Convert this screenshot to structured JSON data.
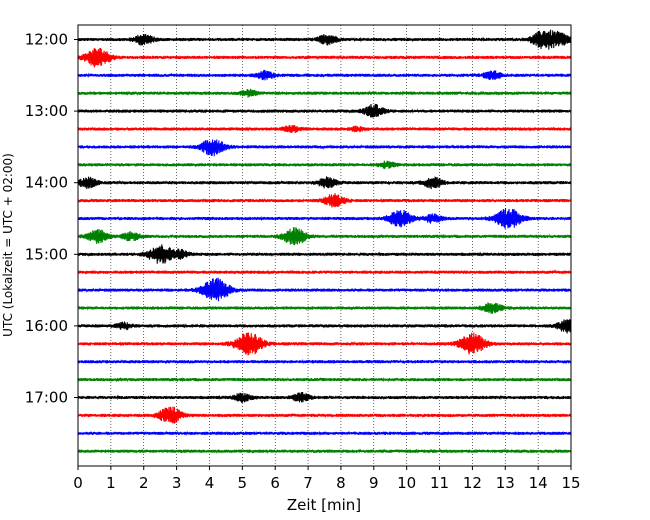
{
  "chart_data": {
    "type": "line",
    "chart_kind": "helicorder (seismogram drum plot)",
    "xlabel": "Zeit  [min]",
    "ylabel": "UTC (Lokalzeit = UTC + 02:00)",
    "xlim": [
      0,
      15
    ],
    "x_ticks": [
      "0",
      "1",
      "2",
      "3",
      "4",
      "5",
      "6",
      "7",
      "8",
      "9",
      "10",
      "11",
      "12",
      "13",
      "14",
      "15"
    ],
    "y_tick_labels": [
      "12:00",
      "13:00",
      "14:00",
      "15:00",
      "16:00",
      "17:00"
    ],
    "grid": "vertical dotted lines at every minute",
    "line_colors": [
      "#000000",
      "#ff0000",
      "#0000ff",
      "#008000"
    ],
    "traces": [
      {
        "start": "12:00",
        "color": "#000000",
        "bursts": [
          [
            2.0,
            5
          ],
          [
            7.6,
            5
          ],
          [
            14.2,
            9
          ],
          [
            14.7,
            5
          ]
        ]
      },
      {
        "start": "12:15",
        "color": "#ff0000",
        "bursts": [
          [
            0.6,
            9
          ]
        ]
      },
      {
        "start": "12:30",
        "color": "#0000ff",
        "bursts": [
          [
            5.7,
            4
          ],
          [
            12.6,
            4
          ]
        ]
      },
      {
        "start": "12:45",
        "color": "#008000",
        "bursts": [
          [
            5.2,
            3
          ]
        ]
      },
      {
        "start": "13:00",
        "color": "#000000",
        "bursts": [
          [
            9.0,
            6
          ]
        ]
      },
      {
        "start": "13:15",
        "color": "#ff0000",
        "bursts": [
          [
            6.5,
            3
          ],
          [
            8.5,
            2
          ]
        ]
      },
      {
        "start": "13:30",
        "color": "#0000ff",
        "bursts": [
          [
            4.1,
            8
          ]
        ]
      },
      {
        "start": "13:45",
        "color": "#008000",
        "bursts": [
          [
            9.4,
            3
          ]
        ]
      },
      {
        "start": "14:00",
        "color": "#000000",
        "bursts": [
          [
            0.3,
            5
          ],
          [
            7.6,
            5
          ],
          [
            10.8,
            5
          ]
        ]
      },
      {
        "start": "14:15",
        "color": "#ff0000",
        "bursts": [
          [
            7.8,
            6
          ]
        ]
      },
      {
        "start": "14:30",
        "color": "#0000ff",
        "bursts": [
          [
            9.8,
            8
          ],
          [
            13.1,
            10
          ],
          [
            10.8,
            4
          ]
        ]
      },
      {
        "start": "14:45",
        "color": "#008000",
        "bursts": [
          [
            0.6,
            6
          ],
          [
            6.6,
            8
          ],
          [
            1.6,
            4
          ]
        ]
      },
      {
        "start": "15:00",
        "color": "#000000",
        "bursts": [
          [
            2.5,
            9
          ],
          [
            3.1,
            4
          ]
        ]
      },
      {
        "start": "15:15",
        "color": "#ff0000",
        "bursts": []
      },
      {
        "start": "15:30",
        "color": "#0000ff",
        "bursts": [
          [
            4.2,
            11
          ]
        ]
      },
      {
        "start": "15:45",
        "color": "#008000",
        "bursts": [
          [
            12.6,
            5
          ]
        ]
      },
      {
        "start": "16:00",
        "color": "#000000",
        "bursts": [
          [
            14.9,
            6
          ],
          [
            1.4,
            3
          ]
        ]
      },
      {
        "start": "16:15",
        "color": "#ff0000",
        "bursts": [
          [
            5.2,
            11
          ],
          [
            12.0,
            10
          ]
        ]
      },
      {
        "start": "16:30",
        "color": "#0000ff",
        "bursts": []
      },
      {
        "start": "16:45",
        "color": "#008000",
        "bursts": []
      },
      {
        "start": "17:00",
        "color": "#000000",
        "bursts": [
          [
            5.0,
            4
          ],
          [
            6.8,
            4
          ]
        ]
      },
      {
        "start": "17:15",
        "color": "#ff0000",
        "bursts": [
          [
            2.8,
            8
          ]
        ]
      },
      {
        "start": "17:30",
        "color": "#0000ff",
        "bursts": []
      },
      {
        "start": "17:45",
        "color": "#008000",
        "bursts": []
      }
    ]
  }
}
